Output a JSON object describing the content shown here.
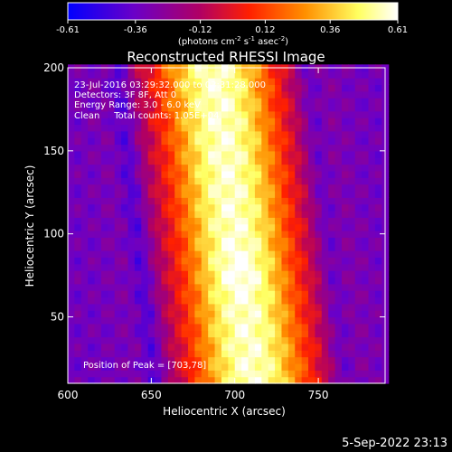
{
  "chart_data": {
    "type": "heatmap",
    "title": "Reconstructed RHESSI Image",
    "xlabel": "Heliocentric X (arcsec)",
    "ylabel": "Heliocentric Y (arcsec)",
    "xlim": [
      600,
      790
    ],
    "ylim": [
      10,
      200
    ],
    "xticks": [
      "600",
      "650",
      "700",
      "750"
    ],
    "yticks": [
      "50",
      "100",
      "150",
      "200"
    ],
    "xtick_values": [
      600,
      650,
      700,
      750
    ],
    "ytick_values": [
      50,
      100,
      150,
      200
    ],
    "colorbar": {
      "ticks": [
        "-0.61",
        "-0.36",
        "-0.12",
        "0.12",
        "0.36",
        "0.61"
      ],
      "tick_values": [
        -0.61,
        -0.36,
        -0.12,
        0.12,
        0.36,
        0.61
      ],
      "range": [
        -0.61,
        0.61
      ],
      "unit_prefix": "(photons cm",
      "unit_exp1": "-2",
      "unit_mid": " s",
      "unit_exp2": "-1",
      "unit_mid2": " asec",
      "unit_exp3": "-2",
      "unit_suffix": ")"
    },
    "annotations": {
      "time_range": "23-Jul-2016 03:29:32.000 to 03:31:28.000",
      "detectors": "Detectors: 3F 8F, Att 0",
      "energy_range": "Energy Range: 3.0 - 6.0 keV",
      "method": "Clean     Total counts: 1.05E+04",
      "peak": "Position of Peak = [703,78]"
    },
    "peak_position": [
      703,
      78
    ],
    "colors": {
      "colormap": [
        "#0000ff",
        "#6a00c8",
        "#b00064",
        "#ff2000",
        "#ff9000",
        "#ffff60",
        "#ffffff"
      ]
    }
  },
  "footer": {
    "timestamp": "5-Sep-2022 23:13"
  }
}
